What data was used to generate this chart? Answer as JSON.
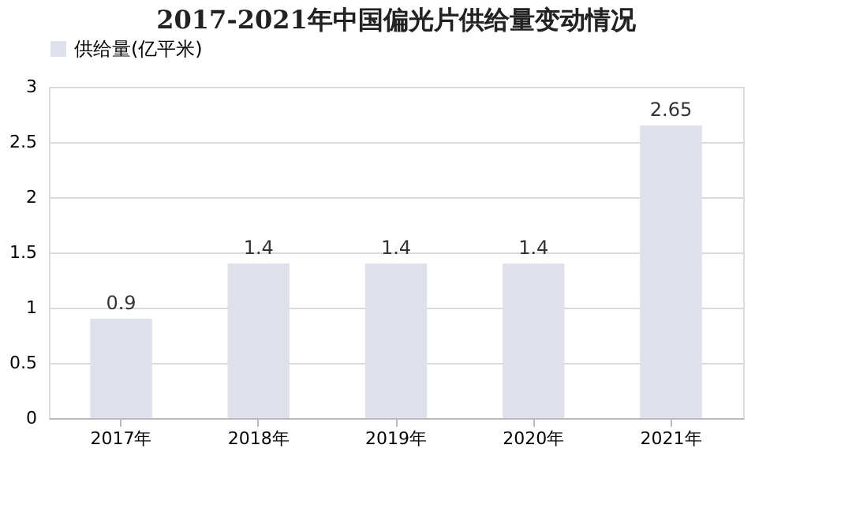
{
  "chart_data": {
    "type": "bar",
    "title": "2017-2021年中国偏光片供给量变动情况",
    "categories": [
      "2017年",
      "2018年",
      "2019年",
      "2020年",
      "2021年"
    ],
    "series": [
      {
        "name": "供给量(亿平米)",
        "color": "#dfe1ea",
        "values": [
          0.9,
          1.4,
          1.4,
          1.4,
          2.65
        ]
      }
    ],
    "ylim": [
      0,
      3
    ],
    "yticks": [
      0,
      0.5,
      1,
      1.5,
      2,
      2.5,
      3
    ],
    "grid": "y",
    "legend": "top",
    "data_labels": true
  }
}
